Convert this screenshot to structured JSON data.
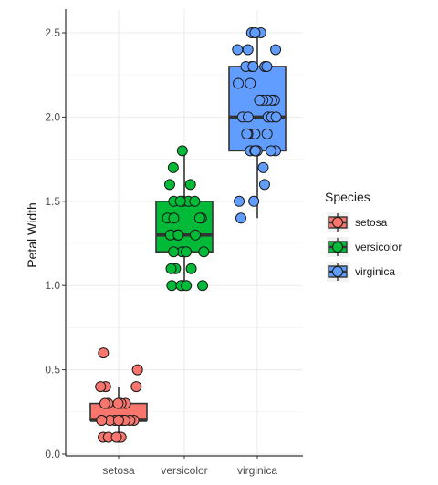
{
  "chart_data": {
    "type": "boxplot-with-jitter",
    "ylabel": "Petal Width",
    "ylim": [
      0,
      2.6
    ],
    "yticks": [
      0.0,
      0.5,
      1.0,
      1.5,
      2.0,
      2.5
    ],
    "ytick_labels": [
      "0.0",
      "0.5",
      "1.0",
      "1.5",
      "2.0",
      "2.5"
    ],
    "categories": [
      "setosa",
      "versicolor",
      "virginica"
    ],
    "grid": true,
    "legend": {
      "title": "Species",
      "position": "right",
      "entries": [
        "setosa",
        "versicolor",
        "virginica"
      ]
    },
    "series": [
      {
        "name": "setosa",
        "color": "#F8766D",
        "box": {
          "min": 0.1,
          "q1": 0.2,
          "median": 0.2,
          "q3": 0.3,
          "max": 0.4
        },
        "points": [
          0.1,
          0.1,
          0.1,
          0.1,
          0.1,
          0.2,
          0.2,
          0.2,
          0.2,
          0.2,
          0.2,
          0.2,
          0.2,
          0.2,
          0.2,
          0.3,
          0.3,
          0.3,
          0.3,
          0.3,
          0.4,
          0.4,
          0.4,
          0.5,
          0.6
        ]
      },
      {
        "name": "versicolor",
        "color": "#00BA38",
        "box": {
          "min": 1.0,
          "q1": 1.2,
          "median": 1.3,
          "q3": 1.5,
          "max": 1.8
        },
        "points": [
          1.0,
          1.0,
          1.0,
          1.0,
          1.0,
          1.1,
          1.1,
          1.1,
          1.2,
          1.2,
          1.2,
          1.2,
          1.3,
          1.3,
          1.3,
          1.3,
          1.3,
          1.4,
          1.4,
          1.4,
          1.4,
          1.5,
          1.5,
          1.5,
          1.5,
          1.5,
          1.6,
          1.6,
          1.7,
          1.8
        ]
      },
      {
        "name": "virginica",
        "color": "#619CFF",
        "box": {
          "min": 1.4,
          "q1": 1.8,
          "median": 2.0,
          "q3": 2.3,
          "max": 2.5
        },
        "points": [
          1.4,
          1.5,
          1.5,
          1.6,
          1.7,
          1.8,
          1.8,
          1.8,
          1.8,
          1.8,
          1.8,
          1.8,
          1.9,
          1.9,
          1.9,
          1.9,
          2.0,
          2.0,
          2.0,
          2.0,
          2.0,
          2.1,
          2.1,
          2.1,
          2.1,
          2.1,
          2.2,
          2.2,
          2.3,
          2.3,
          2.3,
          2.3,
          2.3,
          2.4,
          2.4,
          2.4,
          2.5,
          2.5,
          2.5
        ]
      }
    ]
  }
}
